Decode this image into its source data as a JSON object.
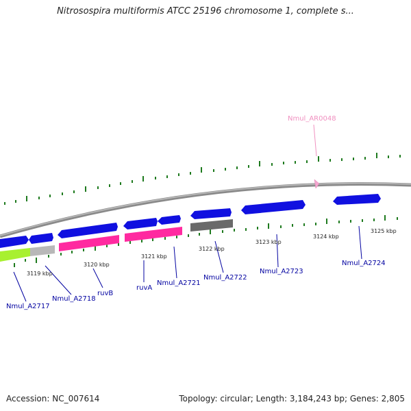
{
  "header": {
    "title": "Nitrosospira multiformis ATCC 25196 chromosome 1, complete s..."
  },
  "footer": {
    "accession": "Accession: NC_007614",
    "topology": "Topology: circular; Length: 3,184,243 bp; Genes: 2,805"
  },
  "map": {
    "colors": {
      "backbone": "#8a8a8a",
      "ticks": "#1e7a1e",
      "cds": "#1010e0",
      "pink_feature": "#ff2aa0",
      "lime_feature": "#a8f030",
      "gray_feature": "#b8b8b8",
      "dark_feature": "#6a6a6a",
      "rna_feature": "#f4a6d0",
      "label_blue": "#0000a0",
      "label_pink": "#f090c0"
    },
    "kbp_labels": [
      "3119 kbp",
      "3120 kbp",
      "3121 kbp",
      "3122 kbp",
      "3123 kbp",
      "3124 kbp",
      "3125 kbp"
    ],
    "gene_labels": [
      {
        "text": "Nmul_AR0048",
        "color": "#f090c0"
      },
      {
        "text": "Nmul_A2717",
        "color": "#0000a0"
      },
      {
        "text": "Nmul_A2718",
        "color": "#0000a0"
      },
      {
        "text": "ruvB",
        "color": "#0000a0"
      },
      {
        "text": "ruvA",
        "color": "#0000a0"
      },
      {
        "text": "Nmul_A2721",
        "color": "#0000a0"
      },
      {
        "text": "Nmul_A2722",
        "color": "#0000a0"
      },
      {
        "text": "Nmul_A2723",
        "color": "#0000a0"
      },
      {
        "text": "Nmul_A2724",
        "color": "#0000a0"
      }
    ]
  }
}
